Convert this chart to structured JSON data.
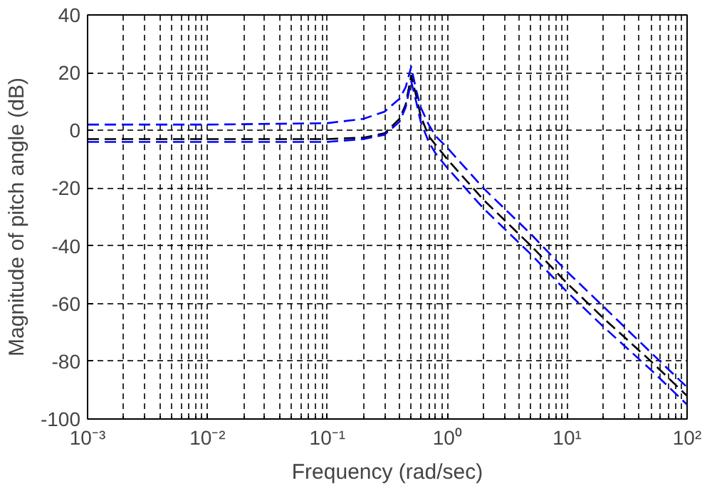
{
  "chart_data": {
    "type": "line",
    "xlabel": "Frequency (rad/sec)",
    "ylabel": "Magnitude of pitch angle (dB)",
    "log": "x",
    "grid": true,
    "line_style": "dashed",
    "marker": "none",
    "xlim": [
      0.001,
      100
    ],
    "ylim": [
      -100,
      40
    ],
    "xticks": [
      {
        "value": 0.001,
        "label": "10⁻³"
      },
      {
        "value": 0.01,
        "label": "10⁻²"
      },
      {
        "value": 0.1,
        "label": "10⁻¹"
      },
      {
        "value": 1,
        "label": "10⁰"
      },
      {
        "value": 10,
        "label": "10¹"
      },
      {
        "value": 100,
        "label": "10²"
      }
    ],
    "yticks": [
      -100,
      -80,
      -60,
      -40,
      -20,
      0,
      20,
      40
    ],
    "x": [
      0.001,
      0.01,
      0.1,
      0.2,
      0.3,
      0.4,
      0.45,
      0.5,
      0.55,
      0.6,
      0.7,
      0.8,
      1,
      2,
      5,
      10,
      20,
      50,
      100
    ],
    "series": [
      {
        "color": "#0000ff",
        "values": [
          2,
          2,
          2.5,
          4,
          6.5,
          11,
          15,
          22,
          14,
          8,
          2,
          -2,
          -6,
          -20,
          -36,
          -49,
          -61,
          -77,
          -89
        ]
      },
      {
        "color": "#000000",
        "values": [
          -3,
          -3,
          -3,
          -2.5,
          -1,
          4,
          9,
          19,
          12,
          5,
          -2,
          -5,
          -10,
          -24,
          -40,
          -53,
          -65,
          -80,
          -92
        ]
      },
      {
        "color": "#0000ff",
        "values": [
          -4,
          -4,
          -4,
          -3,
          -1.5,
          3,
          8,
          17,
          10,
          3,
          -4,
          -8,
          -13,
          -27,
          -43,
          -56,
          -68,
          -83,
          -95
        ]
      }
    ]
  }
}
